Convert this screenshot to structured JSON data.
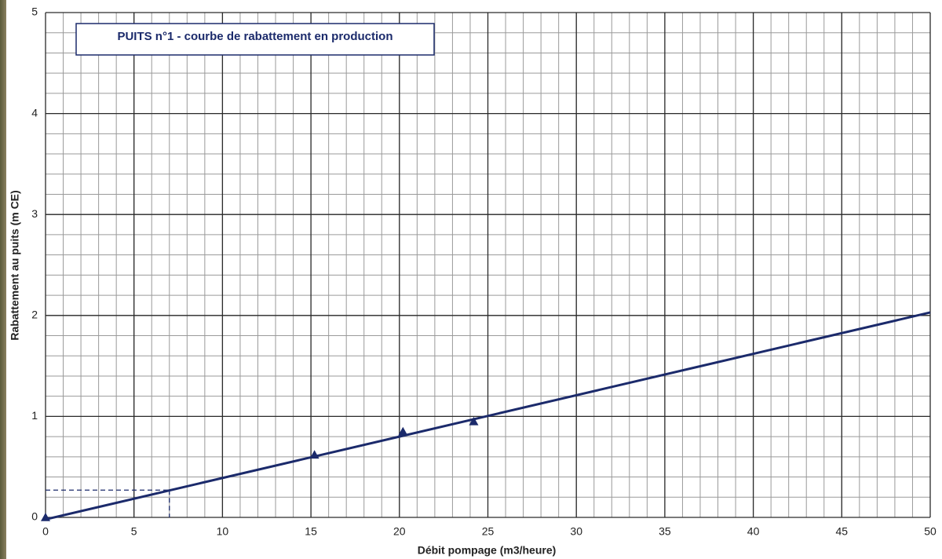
{
  "chart_data": {
    "type": "scatter",
    "title": "PUITS n°1 - courbe de rabattement en production",
    "xlabel": "Débit pompage (m3/heure)",
    "ylabel": "Rabattement au puits (m CE)",
    "xlim": [
      0,
      50
    ],
    "ylim": [
      0,
      5
    ],
    "xticks": [
      0,
      5,
      10,
      15,
      20,
      25,
      30,
      35,
      40,
      45,
      50
    ],
    "yticks": [
      0,
      1,
      2,
      3,
      4,
      5
    ],
    "x_minor_step": 1,
    "y_minor_step": 0.2,
    "grid": true,
    "color": "#1b2a6b",
    "x": [
      0,
      15.2,
      20.2,
      24.2
    ],
    "values": [
      0,
      0.62,
      0.85,
      0.95
    ],
    "trend_line": {
      "x": [
        0,
        50
      ],
      "values": [
        -0.02,
        2.03
      ]
    },
    "reading": {
      "x": 7,
      "y": 0.27
    }
  }
}
